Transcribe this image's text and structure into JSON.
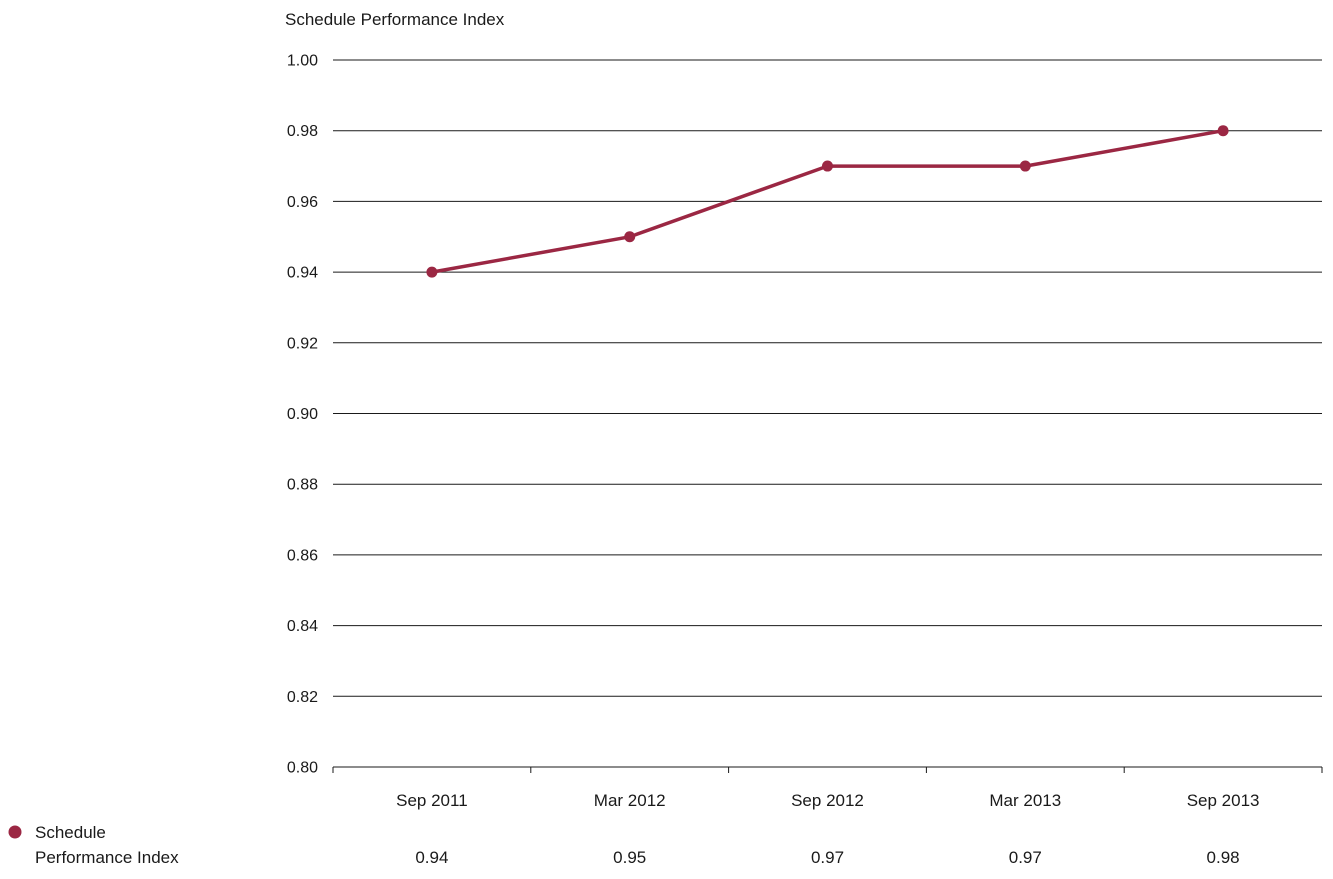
{
  "colors": {
    "series": "#9b2743",
    "text": "#1a1a1a",
    "grid": "#1a1a1a",
    "background": "#ffffff"
  },
  "chart_data": {
    "type": "line",
    "title": "Schedule Performance Index",
    "xlabel": "",
    "ylabel": "",
    "categories": [
      "Sep 2011",
      "Mar 2012",
      "Sep 2012",
      "Mar 2013",
      "Sep 2013"
    ],
    "series": [
      {
        "name": "Schedule Performance Index",
        "name_lines": [
          "Schedule",
          "Performance Index"
        ],
        "values": [
          0.94,
          0.95,
          0.97,
          0.97,
          0.98
        ],
        "value_labels": [
          "0.94",
          "0.95",
          "0.97",
          "0.97",
          "0.98"
        ]
      }
    ],
    "ylim": [
      0.8,
      1.0
    ],
    "yticks": [
      "0.80",
      "0.82",
      "0.84",
      "0.86",
      "0.88",
      "0.90",
      "0.92",
      "0.94",
      "0.96",
      "0.98",
      "1.00"
    ],
    "grid": true,
    "legend": "bottom-left",
    "data_table": true
  }
}
